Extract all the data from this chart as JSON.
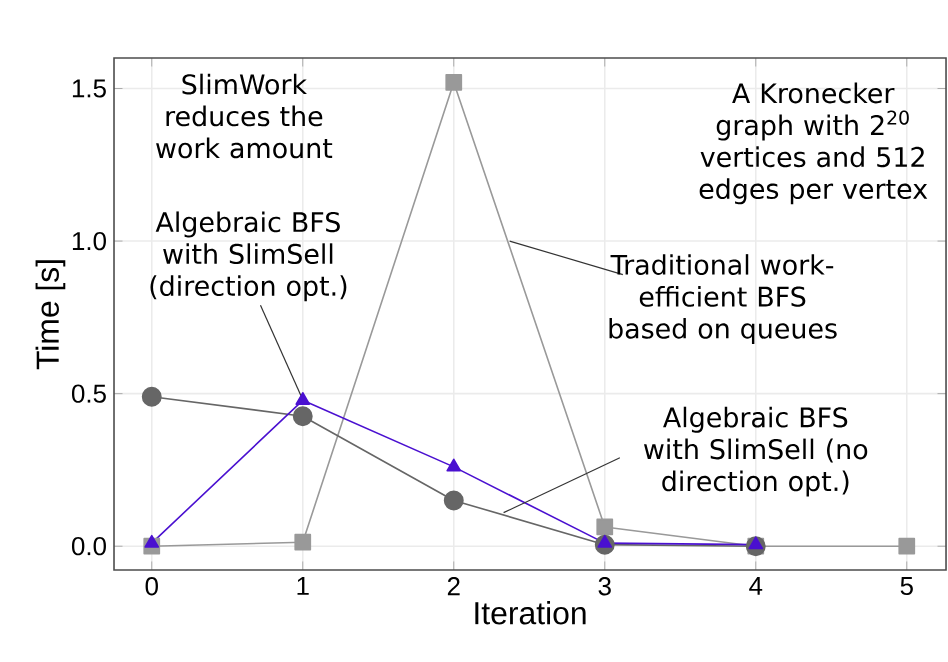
{
  "chart_data": {
    "type": "line",
    "xlabel": "Iteration",
    "ylabel": "Time [s]",
    "xlim": [
      -0.25,
      5.26
    ],
    "ylim": [
      -0.078,
      1.6
    ],
    "xticks": [
      0,
      1,
      2,
      3,
      4,
      5
    ],
    "yticks": [
      {
        "value": 0,
        "label": "0.0"
      },
      0.5,
      {
        "value": 1,
        "label": "1.0"
      },
      1.5
    ],
    "grid": true,
    "line_style": "solid",
    "series": [
      {
        "x": [
          0,
          1,
          2,
          3,
          4,
          5
        ],
        "values": [
          0,
          0.013,
          1.52,
          0.063,
          0,
          0
        ],
        "color": "#999999",
        "marker": "square"
      },
      {
        "x": [
          0,
          1,
          2,
          3,
          4
        ],
        "values": [
          0.49,
          0.426,
          0.15,
          0.005,
          0
        ],
        "color": "#666666",
        "marker": "circle"
      },
      {
        "x": [
          0,
          1,
          2,
          3,
          4
        ],
        "values": [
          0.01,
          0.478,
          0.26,
          0.01,
          0.005
        ],
        "color": "#4a10d0",
        "marker": "triangle"
      }
    ],
    "annotations": [
      "SlimWork reduces the work amount",
      "A Kronecker graph with 2$^{20}$ vertices and 512 edges per vertex",
      {
        "text": "Algebraic BFS with SlimSell (direction opt.)",
        "x": 1,
        "y": 0.48
      },
      {
        "text": "Traditional work-efficient BFS based on queues",
        "x": 2.37,
        "y": 1.0
      },
      {
        "text": "Algebraic BFS with SlimSell (no direction opt.)",
        "x": 2.33,
        "y": 0.11
      }
    ]
  }
}
